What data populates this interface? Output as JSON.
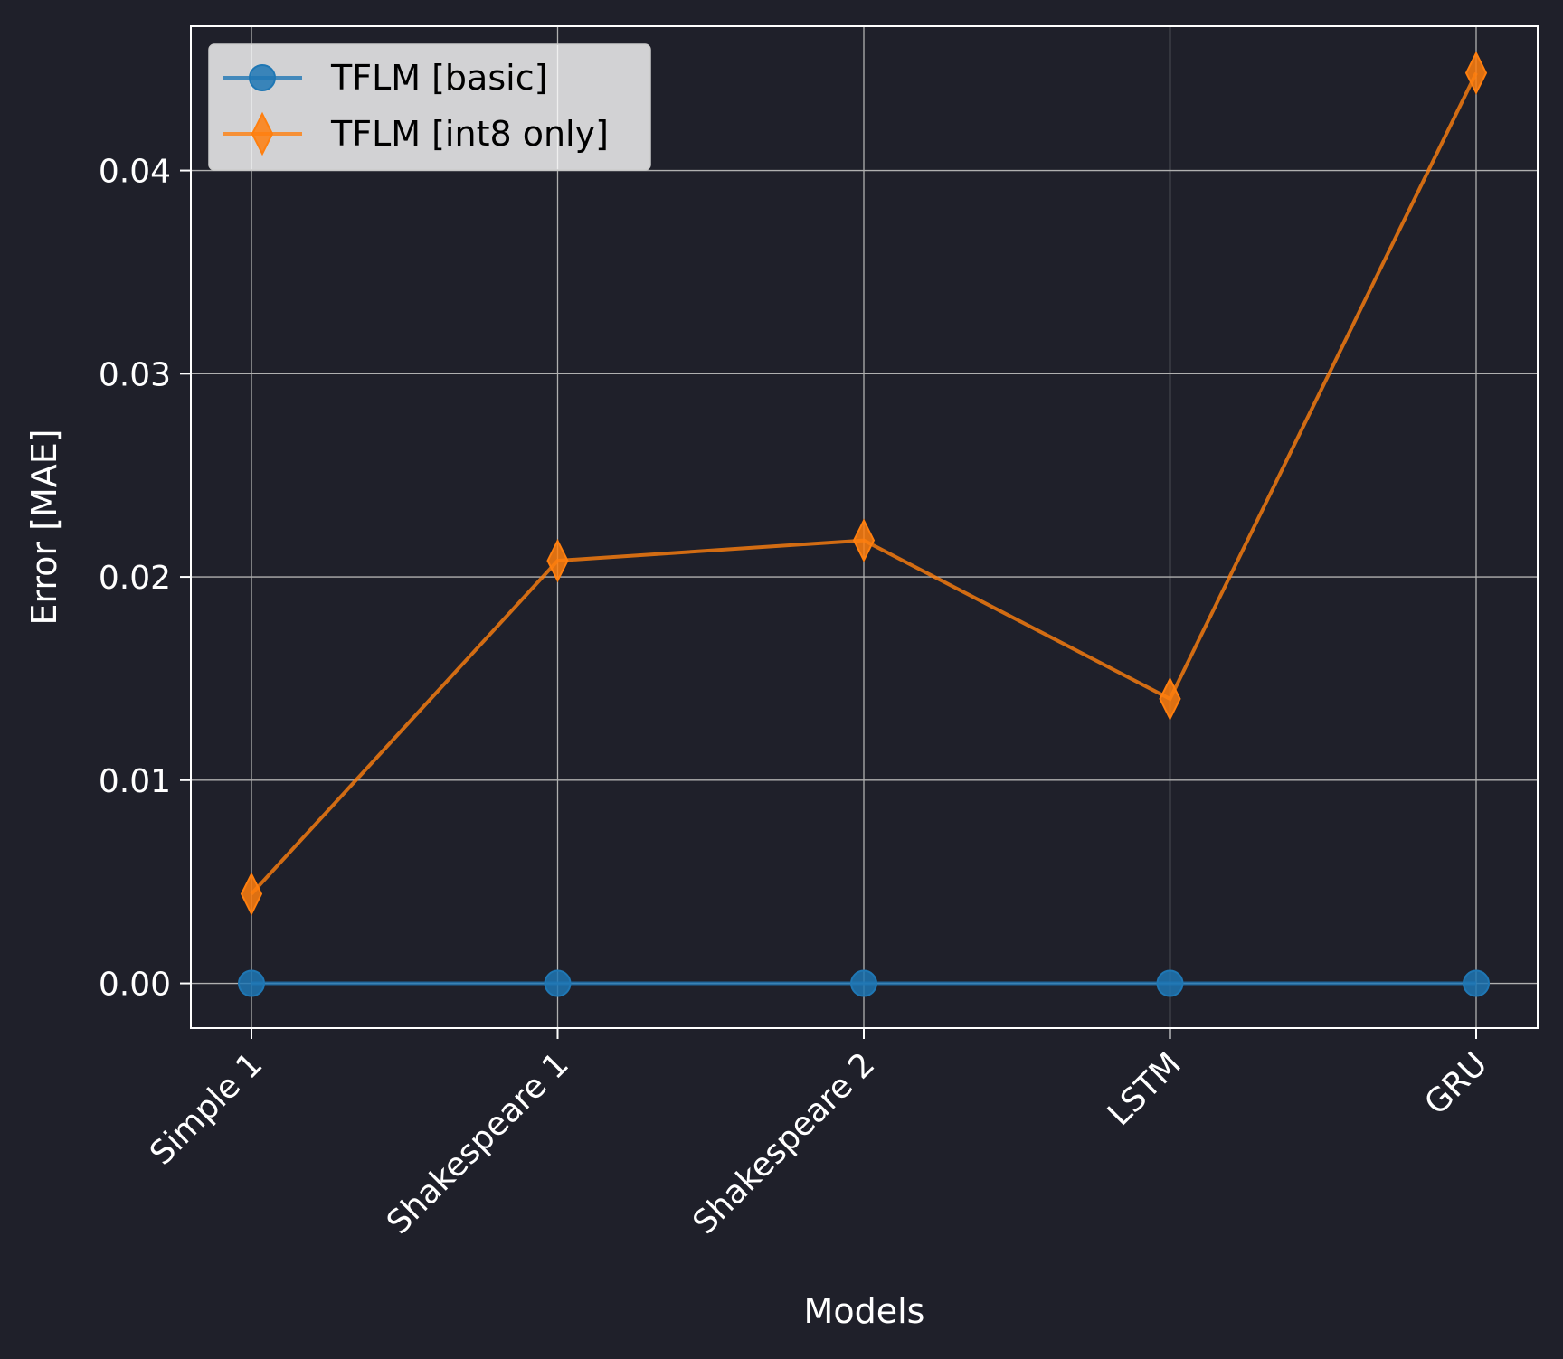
{
  "chart_data": {
    "type": "line",
    "categories": [
      "Simple 1",
      "Shakespeare 1",
      "Shakespeare 2",
      "LSTM",
      "GRU"
    ],
    "series": [
      {
        "name": "TFLM [basic]",
        "values": [
          0.0,
          0.0,
          0.0,
          0.0,
          0.0
        ],
        "color": "#1f77b4",
        "marker": "circle"
      },
      {
        "name": "TFLM [int8 only]",
        "values": [
          0.0044,
          0.0208,
          0.0218,
          0.014,
          0.0448
        ],
        "color": "#ff7f0e",
        "marker": "thin-diamond"
      }
    ],
    "xlabel": "Models",
    "ylabel": "Error [MAE]",
    "ylim": [
      -0.0022,
      0.0471
    ],
    "yticks": [
      0.0,
      0.01,
      0.02,
      0.03,
      0.04
    ],
    "ytick_labels": [
      "0.00",
      "0.01",
      "0.02",
      "0.03",
      "0.04"
    ],
    "grid": true,
    "legend_position": "top-left",
    "background": "#1f202a"
  }
}
